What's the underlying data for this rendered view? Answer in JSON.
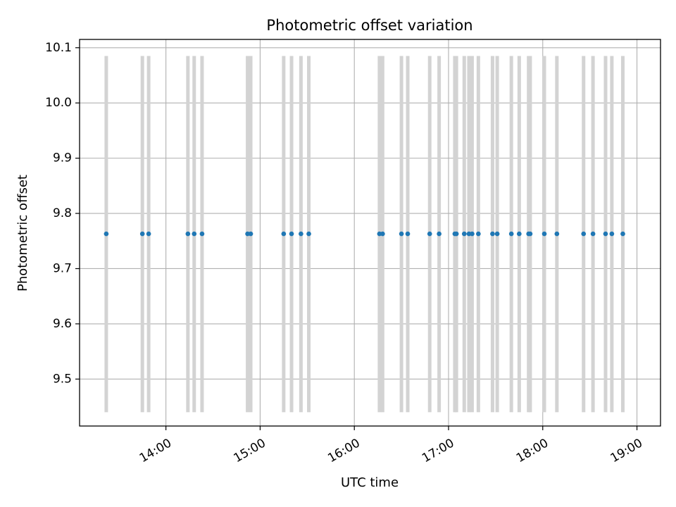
{
  "chart_data": {
    "type": "scatter",
    "title": "Photometric offset variation",
    "xlabel": "UTC time",
    "ylabel": "Photometric offset",
    "xlim": [
      "13:05",
      "19:15"
    ],
    "ylim": [
      9.415,
      10.115
    ],
    "x_tick_labels": [
      "14:00",
      "15:00",
      "16:00",
      "17:00",
      "18:00",
      "19:00"
    ],
    "y_tick_labels": [
      "9.5",
      "9.6",
      "9.7",
      "9.8",
      "9.9",
      "10.0",
      "10.1"
    ],
    "grid": true,
    "band_range": [
      9.44,
      10.085
    ],
    "bands": [
      "13:22",
      "13:45",
      "13:49",
      "14:14",
      "14:18",
      "14:23",
      "14:52",
      "14:54",
      "15:15",
      "15:20",
      "15:26",
      "15:31",
      "16:16",
      "16:18",
      "16:30",
      "16:34",
      "16:48",
      "16:54",
      "17:04",
      "17:05",
      "17:10",
      "17:13",
      "17:15",
      "17:19",
      "17:28",
      "17:31",
      "17:40",
      "17:45",
      "17:51",
      "17:52",
      "18:01",
      "18:09",
      "18:26",
      "18:32",
      "18:40",
      "18:44",
      "18:51"
    ],
    "series": [
      {
        "color": "#1f77b4",
        "x": [
          "13:22",
          "13:45",
          "13:49",
          "14:14",
          "14:18",
          "14:23",
          "14:52",
          "14:54",
          "15:15",
          "15:20",
          "15:26",
          "15:31",
          "16:16",
          "16:18",
          "16:30",
          "16:34",
          "16:48",
          "16:54",
          "17:04",
          "17:05",
          "17:10",
          "17:13",
          "17:15",
          "17:19",
          "17:28",
          "17:31",
          "17:40",
          "17:45",
          "17:51",
          "17:52",
          "18:01",
          "18:09",
          "18:26",
          "18:32",
          "18:40",
          "18:44",
          "18:51"
        ],
        "y": [
          9.763,
          9.763,
          9.763,
          9.763,
          9.763,
          9.763,
          9.763,
          9.763,
          9.763,
          9.763,
          9.763,
          9.763,
          9.763,
          9.763,
          9.763,
          9.763,
          9.763,
          9.763,
          9.763,
          9.763,
          9.763,
          9.763,
          9.763,
          9.763,
          9.763,
          9.763,
          9.763,
          9.763,
          9.763,
          9.763,
          9.763,
          9.763,
          9.763,
          9.763,
          9.763,
          9.763,
          9.763
        ]
      }
    ],
    "colors": {
      "band": "#d3d3d3",
      "grid": "#b0b0b0",
      "axes": "#000000",
      "marker": "#1f77b4"
    }
  }
}
